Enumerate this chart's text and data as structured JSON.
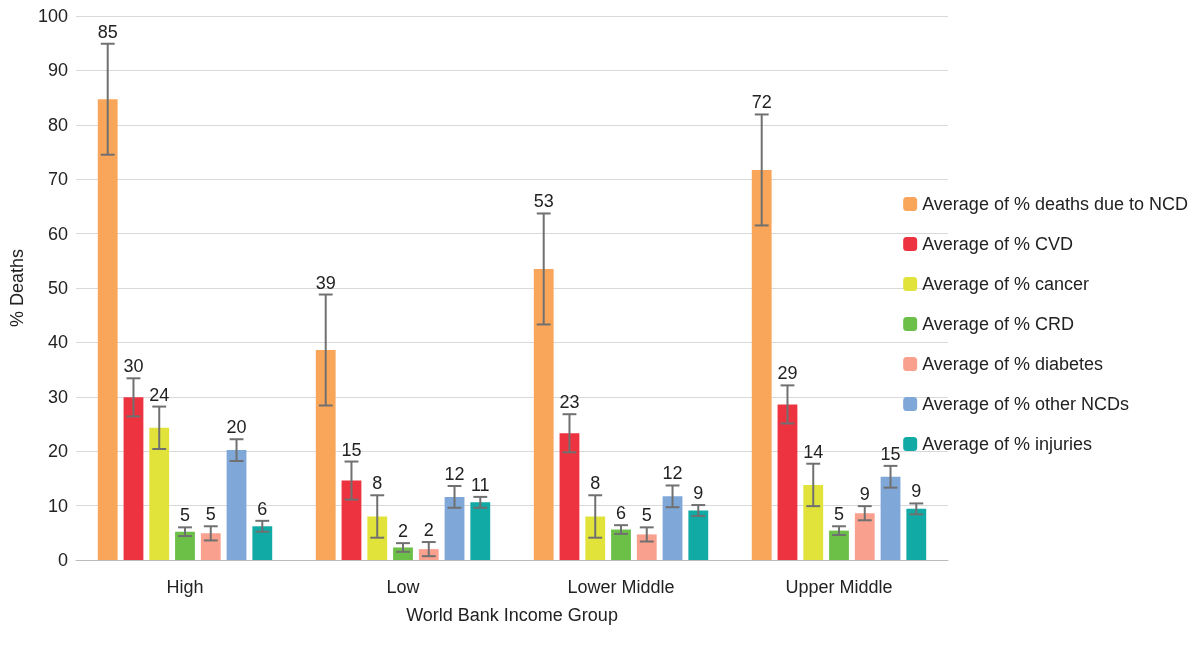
{
  "chart_data": {
    "type": "bar",
    "xlabel": "World Bank Income Group",
    "ylabel": "% Deaths",
    "categories": [
      "High",
      "Low",
      "Lower Middle",
      "Upper Middle"
    ],
    "series": [
      {
        "name": "Average of % deaths due to NCD",
        "color": "#f9a65a",
        "values": [
          84.7,
          38.6,
          53.5,
          71.7
        ],
        "errors": [
          10.2,
          10.2,
          10.2,
          10.2
        ],
        "value_labels": [
          "85",
          "39",
          "53",
          "72"
        ]
      },
      {
        "name": "Average of % CVD",
        "color": "#ee3340",
        "values": [
          29.9,
          14.6,
          23.3,
          28.6
        ],
        "errors": [
          3.5,
          3.5,
          3.5,
          3.5
        ],
        "value_labels": [
          "30",
          "15",
          "23",
          "29"
        ]
      },
      {
        "name": "Average of % cancer",
        "color": "#e2e33a",
        "values": [
          24.3,
          8,
          8,
          13.8
        ],
        "errors": [
          3.9,
          3.9,
          3.9,
          3.9
        ],
        "value_labels": [
          "24",
          "8",
          "8",
          "14"
        ]
      },
      {
        "name": "Average of % CRD",
        "color": "#6cbf47",
        "values": [
          5.2,
          2.3,
          5.6,
          5.4
        ],
        "errors": [
          0.8,
          0.8,
          0.8,
          0.8
        ],
        "value_labels": [
          "5",
          "2",
          "6",
          "5"
        ]
      },
      {
        "name": "Average of % diabetes",
        "color": "#f9a08f",
        "values": [
          4.9,
          2,
          4.7,
          8.6
        ],
        "errors": [
          1.3,
          1.3,
          1.3,
          1.3
        ],
        "value_labels": [
          "5",
          "2",
          "5",
          "9"
        ]
      },
      {
        "name": "Average of % other NCDs",
        "color": "#7fa8d8",
        "values": [
          20.2,
          11.6,
          11.7,
          15.3
        ],
        "errors": [
          2,
          2,
          2,
          2
        ],
        "value_labels": [
          "20",
          "12",
          "12",
          "15"
        ]
      },
      {
        "name": "Average of % injuries",
        "color": "#11aaa5",
        "values": [
          6.2,
          10.6,
          9.1,
          9.4
        ],
        "errors": [
          1,
          1,
          1,
          1
        ],
        "value_labels": [
          "6",
          "11",
          "9",
          "9"
        ]
      }
    ],
    "ylim": [
      0,
      100
    ],
    "yticks": [
      0,
      10,
      20,
      30,
      40,
      50,
      60,
      70,
      80,
      90,
      100
    ],
    "grid": "y",
    "legend": "right"
  }
}
